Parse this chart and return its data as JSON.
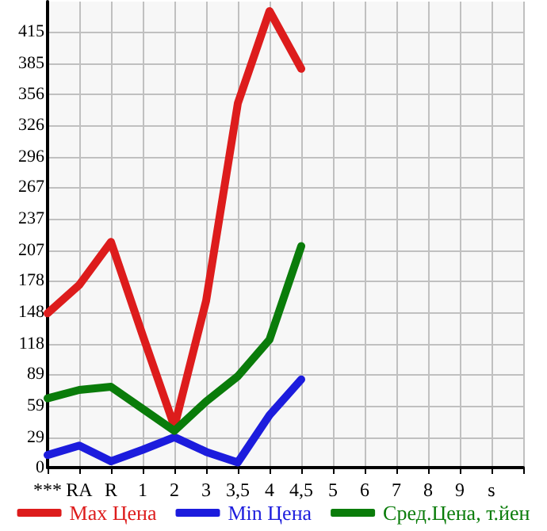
{
  "chart_data": {
    "type": "line",
    "categories": [
      "***",
      "RA",
      "R",
      "1",
      "2",
      "3",
      "3,5",
      "4",
      "4,5",
      "5",
      "6",
      "7",
      "8",
      "9",
      "s",
      null
    ],
    "series": [
      {
        "name": "Max Цена",
        "color": "#dd1c1c",
        "values": [
          147,
          174,
          215,
          126,
          39,
          159,
          347,
          435,
          380,
          null,
          null,
          null,
          null,
          null,
          null,
          null
        ]
      },
      {
        "name": "Min Цена",
        "color": "#1c1cdd",
        "values": [
          12,
          21,
          6,
          17,
          29,
          15,
          5,
          50,
          84,
          null,
          null,
          null,
          null,
          null,
          null,
          null
        ]
      },
      {
        "name": "Сред.Цена, т.йен",
        "color": "#0a7c0a",
        "values": [
          66,
          74,
          77,
          56,
          35,
          63,
          87,
          122,
          211,
          null,
          null,
          null,
          null,
          null,
          null,
          null
        ]
      }
    ],
    "ylim": [
      0,
      444
    ],
    "yticks": [
      0,
      29,
      59,
      89,
      118,
      148,
      178,
      207,
      237,
      267,
      296,
      326,
      356,
      385,
      415
    ],
    "grid": true,
    "legend": "bottom",
    "marker": "none",
    "line_style": "solid"
  }
}
